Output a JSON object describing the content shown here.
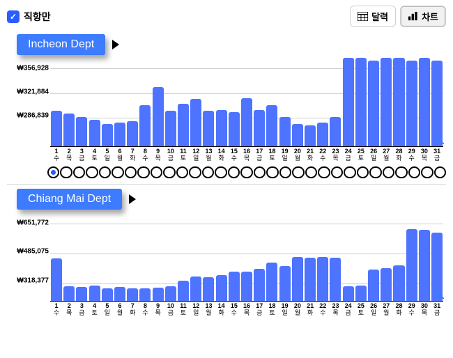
{
  "header": {
    "direct_only_label": "직항만",
    "calendar_label": "달력",
    "chart_label": "차트"
  },
  "colors": {
    "bar": "#4d73ff",
    "tag_bg": "#3d7bff",
    "accent": "#2b5cff",
    "grid": "#cfcfcf"
  },
  "sections": [
    {
      "title": "Incheon Dept",
      "y_labels": [
        "₩356,928",
        "₩321,884",
        "₩286,839"
      ],
      "y_positions_pct": [
        12,
        40,
        68
      ],
      "gridlines_pct": [
        12,
        40,
        68
      ],
      "show_dots": true,
      "selected_dot_index": 0,
      "days": [
        {
          "d": "1",
          "w": "수",
          "v": 310000
        },
        {
          "d": "2",
          "w": "목",
          "v": 305000
        },
        {
          "d": "3",
          "w": "금",
          "v": 300000
        },
        {
          "d": "4",
          "w": "토",
          "v": 295000
        },
        {
          "d": "5",
          "w": "일",
          "v": 288000
        },
        {
          "d": "6",
          "w": "월",
          "v": 290000
        },
        {
          "d": "7",
          "w": "화",
          "v": 292000
        },
        {
          "d": "8",
          "w": "수",
          "v": 320000
        },
        {
          "d": "9",
          "w": "목",
          "v": 350000
        },
        {
          "d": "10",
          "w": "금",
          "v": 310000
        },
        {
          "d": "11",
          "w": "토",
          "v": 322000
        },
        {
          "d": "12",
          "w": "일",
          "v": 330000
        },
        {
          "d": "13",
          "w": "월",
          "v": 310000
        },
        {
          "d": "14",
          "w": "화",
          "v": 312000
        },
        {
          "d": "15",
          "w": "수",
          "v": 308000
        },
        {
          "d": "16",
          "w": "목",
          "v": 332000
        },
        {
          "d": "17",
          "w": "금",
          "v": 312000
        },
        {
          "d": "18",
          "w": "토",
          "v": 320000
        },
        {
          "d": "19",
          "w": "일",
          "v": 300000
        },
        {
          "d": "20",
          "w": "월",
          "v": 288000
        },
        {
          "d": "21",
          "w": "화",
          "v": 285000
        },
        {
          "d": "22",
          "w": "수",
          "v": 290000
        },
        {
          "d": "23",
          "w": "목",
          "v": 300000
        },
        {
          "d": "24",
          "w": "금",
          "v": 400000
        },
        {
          "d": "25",
          "w": "토",
          "v": 400000
        },
        {
          "d": "26",
          "w": "일",
          "v": 395000
        },
        {
          "d": "27",
          "w": "월",
          "v": 400000
        },
        {
          "d": "28",
          "w": "화",
          "v": 400000
        },
        {
          "d": "29",
          "w": "수",
          "v": 395000
        },
        {
          "d": "30",
          "w": "목",
          "v": 400000
        },
        {
          "d": "31",
          "w": "금",
          "v": 395000
        }
      ],
      "y_min": 250000,
      "y_max": 400000
    },
    {
      "title": "Chiang Mai Dept",
      "y_labels": [
        "₩651,772",
        "₩485,075",
        "₩318,377"
      ],
      "y_positions_pct": [
        12,
        46,
        80
      ],
      "gridlines_pct": [
        12,
        46,
        80
      ],
      "show_dots": false,
      "selected_dot_index": null,
      "days": [
        {
          "d": "1",
          "w": "수",
          "v": 490000
        },
        {
          "d": "2",
          "w": "목",
          "v": 340000
        },
        {
          "d": "3",
          "w": "금",
          "v": 335000
        },
        {
          "d": "4",
          "w": "토",
          "v": 345000
        },
        {
          "d": "5",
          "w": "일",
          "v": 330000
        },
        {
          "d": "6",
          "w": "월",
          "v": 335000
        },
        {
          "d": "7",
          "w": "화",
          "v": 330000
        },
        {
          "d": "8",
          "w": "수",
          "v": 328000
        },
        {
          "d": "9",
          "w": "목",
          "v": 332000
        },
        {
          "d": "10",
          "w": "금",
          "v": 340000
        },
        {
          "d": "11",
          "w": "토",
          "v": 370000
        },
        {
          "d": "12",
          "w": "일",
          "v": 395000
        },
        {
          "d": "13",
          "w": "월",
          "v": 390000
        },
        {
          "d": "14",
          "w": "화",
          "v": 400000
        },
        {
          "d": "15",
          "w": "수",
          "v": 420000
        },
        {
          "d": "16",
          "w": "목",
          "v": 420000
        },
        {
          "d": "17",
          "w": "금",
          "v": 435000
        },
        {
          "d": "18",
          "w": "토",
          "v": 470000
        },
        {
          "d": "19",
          "w": "일",
          "v": 450000
        },
        {
          "d": "20",
          "w": "월",
          "v": 500000
        },
        {
          "d": "21",
          "w": "화",
          "v": 495000
        },
        {
          "d": "22",
          "w": "수",
          "v": 500000
        },
        {
          "d": "23",
          "w": "목",
          "v": 495000
        },
        {
          "d": "24",
          "w": "금",
          "v": 340000
        },
        {
          "d": "25",
          "w": "토",
          "v": 345000
        },
        {
          "d": "26",
          "w": "일",
          "v": 430000
        },
        {
          "d": "27",
          "w": "월",
          "v": 440000
        },
        {
          "d": "28",
          "w": "화",
          "v": 455000
        },
        {
          "d": "29",
          "w": "수",
          "v": 650000
        },
        {
          "d": "30",
          "w": "목",
          "v": 645000
        },
        {
          "d": "31",
          "w": "금",
          "v": 630000
        }
      ],
      "y_min": 260000,
      "y_max": 740000
    }
  ]
}
